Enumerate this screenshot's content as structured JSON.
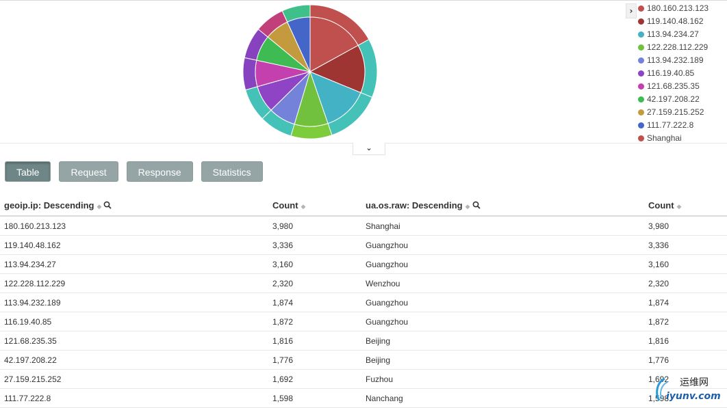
{
  "visualization": {
    "pie": {
      "inner_ring_series": "geoip.ip",
      "outer_ring_series": "ua.os.raw",
      "inner": [
        {
          "label": "180.160.213.123",
          "value": 3980,
          "color": "#c0504d"
        },
        {
          "label": "119.140.48.162",
          "value": 3336,
          "color": "#9e3533"
        },
        {
          "label": "113.94.234.27",
          "value": 3160,
          "color": "#43b2c4"
        },
        {
          "label": "122.228.112.229",
          "value": 2320,
          "color": "#71c13e"
        },
        {
          "label": "113.94.232.189",
          "value": 1874,
          "color": "#7483d9"
        },
        {
          "label": "116.19.40.85",
          "value": 1872,
          "color": "#8e44c4"
        },
        {
          "label": "121.68.235.35",
          "value": 1816,
          "color": "#c440ae"
        },
        {
          "label": "42.197.208.22",
          "value": 1776,
          "color": "#3ebb53"
        },
        {
          "label": "27.159.215.252",
          "value": 1692,
          "color": "#c49a3f"
        },
        {
          "label": "111.77.222.8",
          "value": 1598,
          "color": "#4466c8"
        }
      ],
      "outer": [
        {
          "label": "Shanghai",
          "value": 3980,
          "color": "#c0504d"
        },
        {
          "label": "Guangzhou",
          "value": 3336,
          "color": "#45c2b8"
        },
        {
          "label": "Guangzhou",
          "value": 3160,
          "color": "#45c2b8"
        },
        {
          "label": "Wenzhou",
          "value": 2320,
          "color": "#7dcc3c"
        },
        {
          "label": "Guangzhou",
          "value": 1874,
          "color": "#45c2b8"
        },
        {
          "label": "Guangzhou",
          "value": 1872,
          "color": "#45c2b8"
        },
        {
          "label": "Beijing",
          "value": 1816,
          "color": "#8742c0"
        },
        {
          "label": "Beijing",
          "value": 1776,
          "color": "#8742c0"
        },
        {
          "label": "Fuzhou",
          "value": 1692,
          "color": "#c2407a"
        },
        {
          "label": "Nanchang",
          "value": 1598,
          "color": "#3fc08a"
        }
      ]
    },
    "legend": [
      {
        "label": "180.160.213.123",
        "color": "#c0504d"
      },
      {
        "label": "119.140.48.162",
        "color": "#9e3533"
      },
      {
        "label": "113.94.234.27",
        "color": "#43b2c4"
      },
      {
        "label": "122.228.112.229",
        "color": "#71c13e"
      },
      {
        "label": "113.94.232.189",
        "color": "#7483d9"
      },
      {
        "label": "116.19.40.85",
        "color": "#8e44c4"
      },
      {
        "label": "121.68.235.35",
        "color": "#c440ae"
      },
      {
        "label": "42.197.208.22",
        "color": "#3ebb53"
      },
      {
        "label": "27.159.215.252",
        "color": "#c49a3f"
      },
      {
        "label": "111.77.222.8",
        "color": "#4466c8"
      },
      {
        "label": "Shanghai",
        "color": "#c0504d"
      }
    ],
    "legend_toggle_icon": "chevron-right-icon",
    "collapse_icon": "chevron-down-icon"
  },
  "tabs": [
    {
      "label": "Table",
      "active": true
    },
    {
      "label": "Request",
      "active": false
    },
    {
      "label": "Response",
      "active": false
    },
    {
      "label": "Statistics",
      "active": false
    }
  ],
  "table": {
    "columns": [
      {
        "label": "geoip.ip: Descending",
        "sortable": true,
        "searchable": true
      },
      {
        "label": "Count",
        "sortable": true,
        "searchable": false
      },
      {
        "label": "ua.os.raw: Descending",
        "sortable": true,
        "searchable": true
      },
      {
        "label": "Count",
        "sortable": true,
        "searchable": false
      }
    ],
    "rows": [
      [
        "180.160.213.123",
        "3,980",
        "Shanghai",
        "3,980"
      ],
      [
        "119.140.48.162",
        "3,336",
        "Guangzhou",
        "3,336"
      ],
      [
        "113.94.234.27",
        "3,160",
        "Guangzhou",
        "3,160"
      ],
      [
        "122.228.112.229",
        "2,320",
        "Wenzhou",
        "2,320"
      ],
      [
        "113.94.232.189",
        "1,874",
        "Guangzhou",
        "1,874"
      ],
      [
        "116.19.40.85",
        "1,872",
        "Guangzhou",
        "1,872"
      ],
      [
        "121.68.235.35",
        "1,816",
        "Beijing",
        "1,816"
      ],
      [
        "42.197.208.22",
        "1,776",
        "Beijing",
        "1,776"
      ],
      [
        "27.159.215.252",
        "1,692",
        "Fuzhou",
        "1,692"
      ],
      [
        "111.77.222.8",
        "1,598",
        "Nanchang",
        "1,598"
      ]
    ]
  },
  "watermark": {
    "name": "运维网",
    "url": "iyunv.com"
  }
}
